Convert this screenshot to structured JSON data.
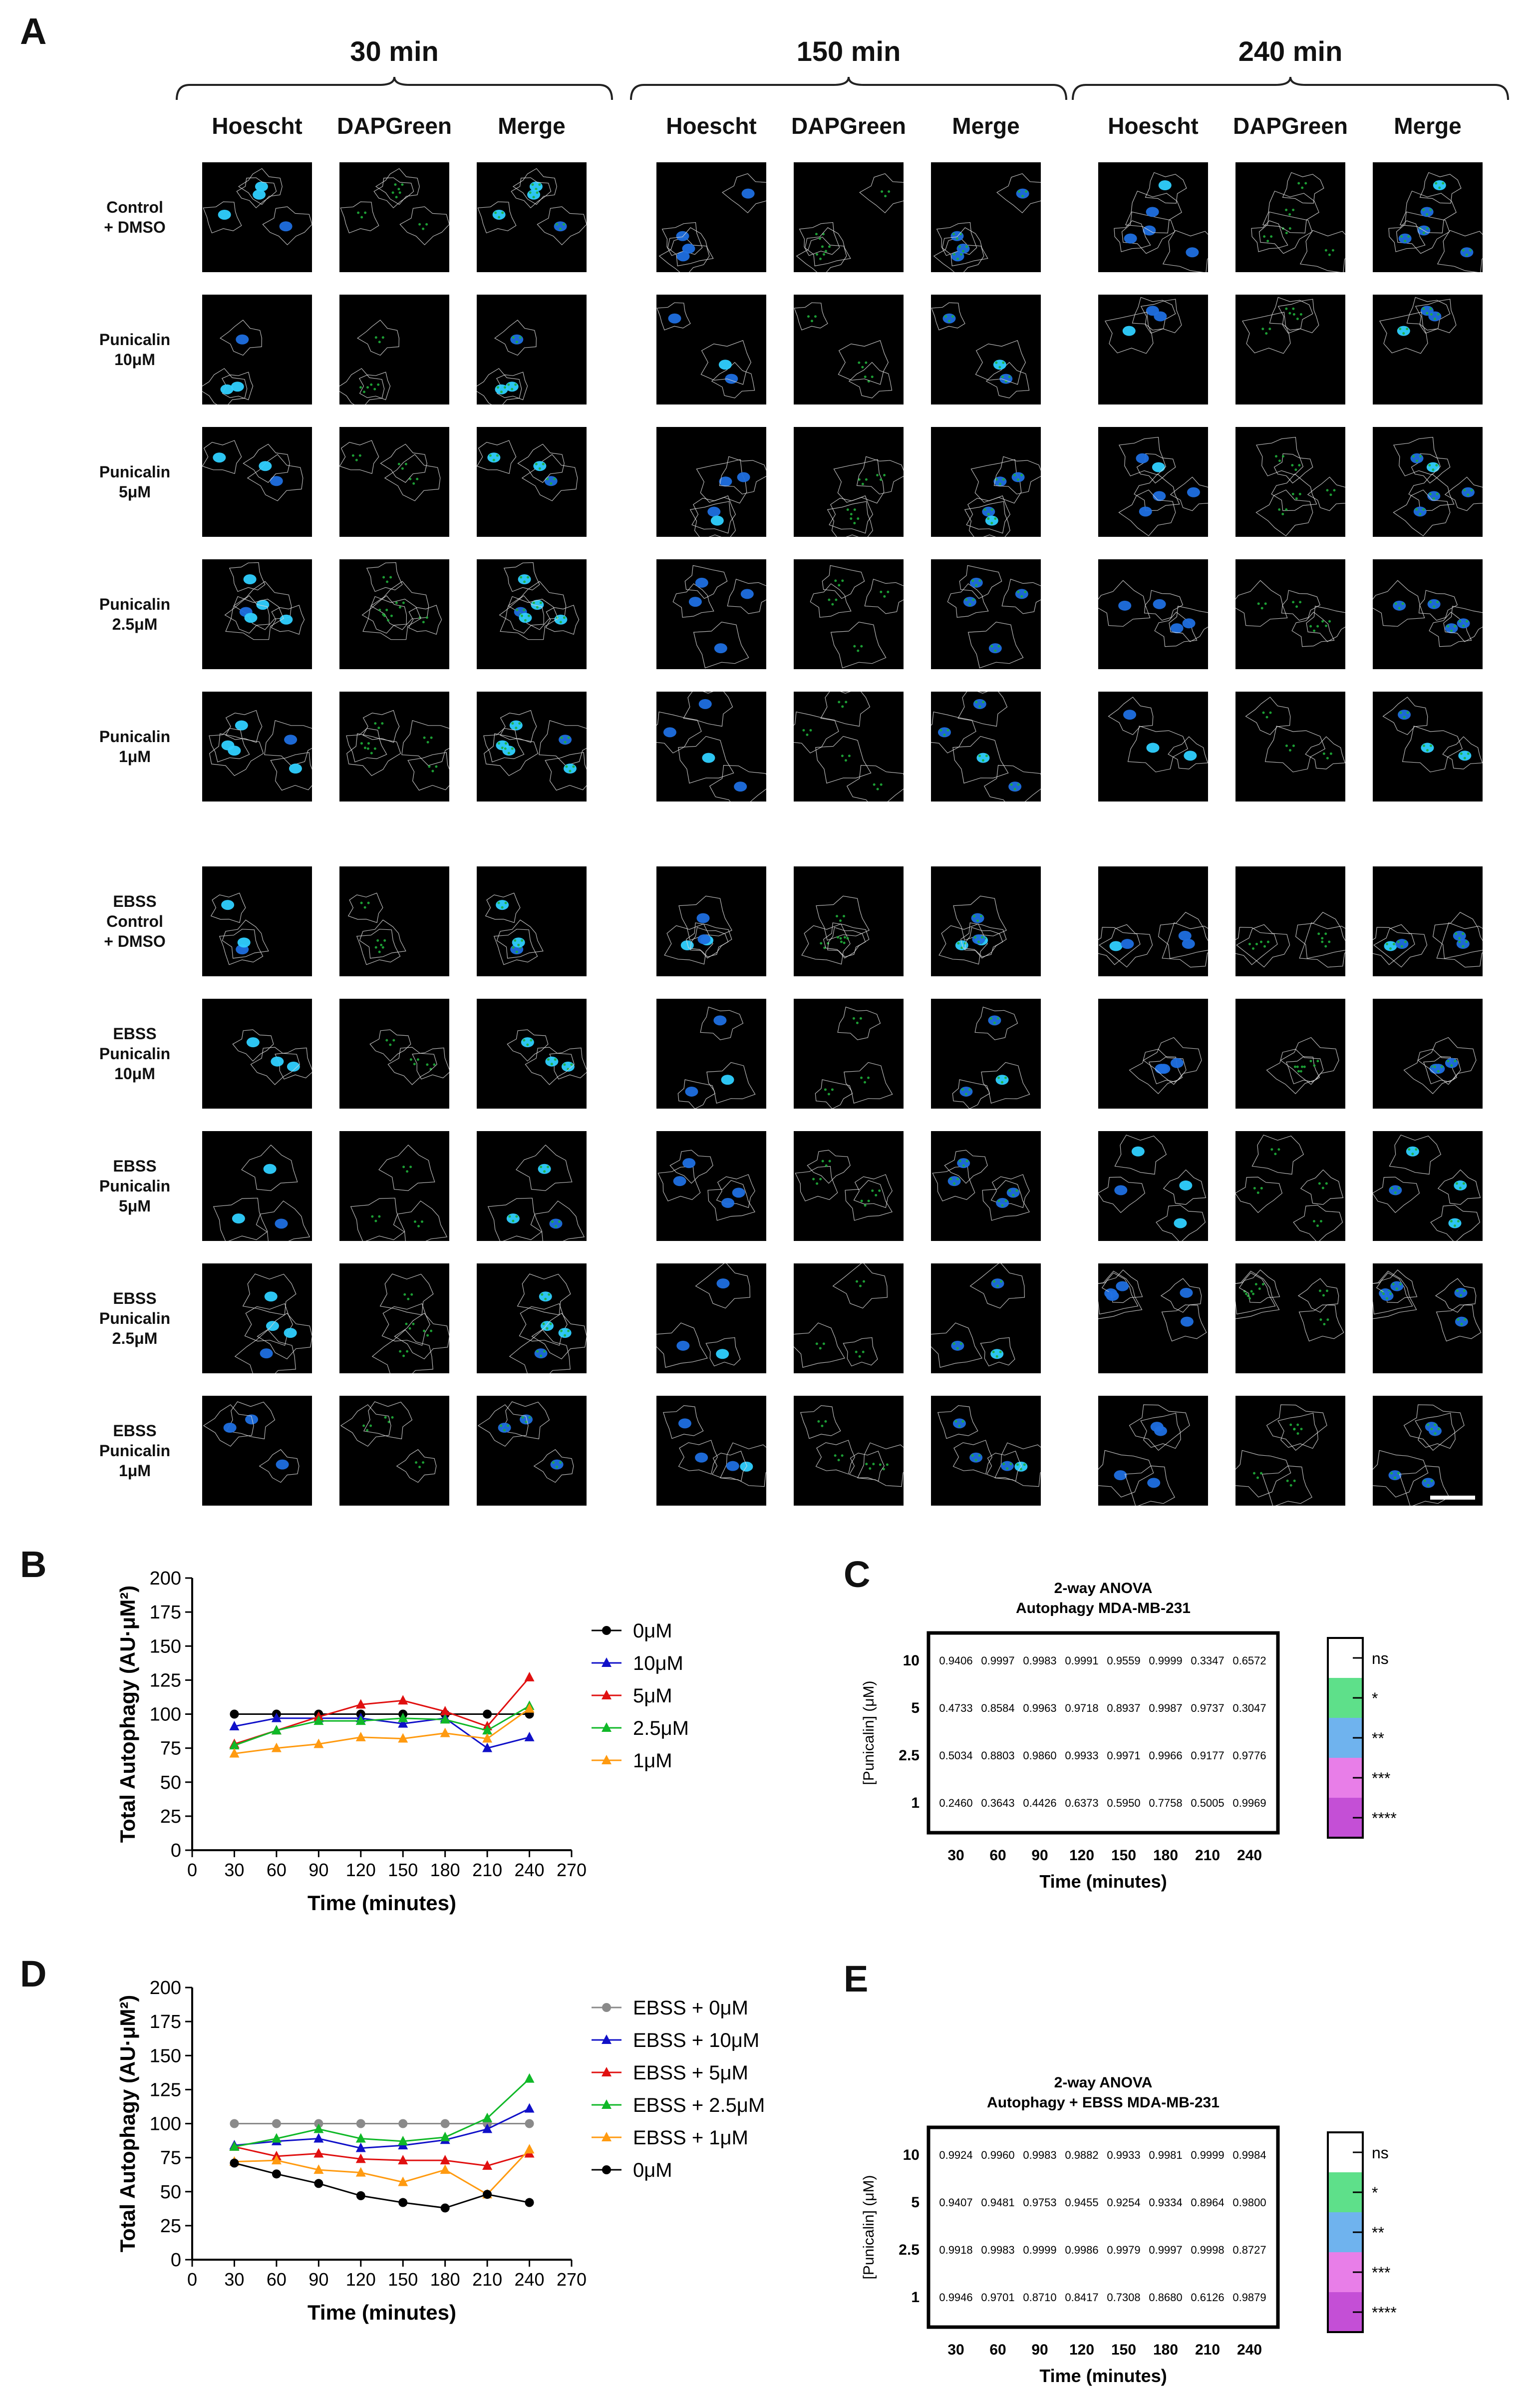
{
  "panel_labels": {
    "a": "A",
    "b": "B",
    "c": "C",
    "d": "D",
    "e": "E"
  },
  "panel_a": {
    "time_points": [
      "30 min",
      "150 min",
      "240 min"
    ],
    "channels": [
      "Hoescht",
      "DAPGreen",
      "Merge"
    ],
    "rows": [
      [
        "Control",
        "+ DMSO"
      ],
      [
        "Punicalin",
        "10μM"
      ],
      [
        "Punicalin",
        "5μM"
      ],
      [
        "Punicalin",
        "2.5μM"
      ],
      [
        "Punicalin",
        "1μM"
      ],
      [
        "EBSS",
        "Control",
        "+ DMSO"
      ],
      [
        "EBSS",
        "Punicalin",
        "10μM"
      ],
      [
        "EBSS",
        "Punicalin",
        "5μM"
      ],
      [
        "EBSS",
        "Punicalin",
        "2.5μM"
      ],
      [
        "EBSS",
        "Punicalin",
        "1μM"
      ]
    ],
    "colors": {
      "nucleus": "#1f6fe0",
      "nucleus_bright": "#2fd0ff",
      "puncta": "#1fae3a",
      "outline": "#d8d8d8"
    }
  },
  "chart_data": [
    {
      "panel": "B",
      "type": "line",
      "xlabel": "Time (minutes)",
      "ylabel": "Total Autophagy (AU·μM²)",
      "xlim": [
        0,
        270
      ],
      "ylim": [
        0,
        200
      ],
      "xticks": [
        0,
        30,
        60,
        90,
        120,
        150,
        180,
        210,
        240,
        270
      ],
      "yticks": [
        0,
        25,
        50,
        75,
        100,
        125,
        150,
        175,
        200
      ],
      "x": [
        30,
        60,
        90,
        120,
        150,
        180,
        210,
        240
      ],
      "legend_position": "right",
      "series": [
        {
          "name": "0μM",
          "color": "#000000",
          "marker": "circle",
          "values": [
            100,
            100,
            100,
            100,
            100,
            100,
            100,
            100
          ]
        },
        {
          "name": "10μM",
          "color": "#1010c8",
          "marker": "triangle",
          "values": [
            91,
            97,
            97,
            97,
            93,
            97,
            75,
            83
          ]
        },
        {
          "name": "5μM",
          "color": "#e01010",
          "marker": "triangle",
          "values": [
            78,
            88,
            98,
            107,
            110,
            102,
            91,
            127
          ]
        },
        {
          "name": "2.5μM",
          "color": "#10b828",
          "marker": "triangle",
          "values": [
            77,
            88,
            95,
            95,
            97,
            96,
            88,
            106
          ]
        },
        {
          "name": "1μM",
          "color": "#ff9a10",
          "marker": "triangle",
          "values": [
            71,
            75,
            78,
            83,
            82,
            86,
            82,
            104
          ]
        }
      ]
    },
    {
      "panel": "D",
      "type": "line",
      "xlabel": "Time (minutes)",
      "ylabel": "Total Autophagy (AU·μM²)",
      "xlim": [
        0,
        270
      ],
      "ylim": [
        0,
        200
      ],
      "xticks": [
        0,
        30,
        60,
        90,
        120,
        150,
        180,
        210,
        240,
        270
      ],
      "yticks": [
        0,
        25,
        50,
        75,
        100,
        125,
        150,
        175,
        200
      ],
      "x": [
        30,
        60,
        90,
        120,
        150,
        180,
        210,
        240
      ],
      "legend_position": "right",
      "series": [
        {
          "name": "EBSS  + 0μM",
          "color": "#8a8a8a",
          "marker": "circle",
          "values": [
            100,
            100,
            100,
            100,
            100,
            100,
            100,
            100
          ]
        },
        {
          "name": "EBSS  + 10μM",
          "color": "#1010c8",
          "marker": "triangle",
          "values": [
            84,
            87,
            89,
            82,
            84,
            88,
            96,
            111
          ]
        },
        {
          "name": "EBSS  + 5μM",
          "color": "#e01010",
          "marker": "triangle",
          "values": [
            83,
            76,
            78,
            74,
            73,
            73,
            69,
            78
          ]
        },
        {
          "name": "EBSS  + 2.5μM",
          "color": "#10b828",
          "marker": "triangle",
          "values": [
            83,
            89,
            96,
            89,
            87,
            90,
            104,
            133
          ]
        },
        {
          "name": "EBSS  + 1μM",
          "color": "#ff9a10",
          "marker": "triangle",
          "values": [
            72,
            73,
            66,
            64,
            57,
            66,
            48,
            81
          ]
        },
        {
          "name": "0μM",
          "color": "#000000",
          "marker": "circle",
          "values": [
            71,
            63,
            56,
            47,
            42,
            38,
            48,
            42
          ]
        }
      ]
    },
    {
      "panel": "C",
      "type": "heatmap",
      "title": "2-way ANOVA",
      "subtitle": "Autophagy MDA-MB-231",
      "xlabel": "Time (minutes)",
      "ylabel": "[Punicalin] (μM)",
      "columns": [
        "30",
        "60",
        "90",
        "120",
        "150",
        "180",
        "210",
        "240"
      ],
      "rows": [
        "10",
        "5",
        "2.5",
        "1"
      ],
      "values": [
        [
          "0.9406",
          "0.9997",
          "0.9983",
          "0.9991",
          "0.9559",
          "0.9999",
          "0.3347",
          "0.6572"
        ],
        [
          "0.4733",
          "0.8584",
          "0.9963",
          "0.9718",
          "0.8937",
          "0.9987",
          "0.9737",
          "0.3047"
        ],
        [
          "0.5034",
          "0.8803",
          "0.9860",
          "0.9933",
          "0.9971",
          "0.9966",
          "0.9177",
          "0.9776"
        ],
        [
          "0.2460",
          "0.3643",
          "0.4426",
          "0.6373",
          "0.5950",
          "0.7758",
          "0.5005",
          "0.9969"
        ]
      ],
      "legend": [
        {
          "label": "ns",
          "color": "#ffffff"
        },
        {
          "label": "*",
          "color": "#5ee08a"
        },
        {
          "label": "**",
          "color": "#6fb3ee"
        },
        {
          "label": "***",
          "color": "#e87ee8"
        },
        {
          "label": "****",
          "color": "#c44fd6"
        }
      ]
    },
    {
      "panel": "E",
      "type": "heatmap",
      "title": "2-way ANOVA",
      "subtitle": "Autophagy + EBSS  MDA-MB-231",
      "xlabel": "Time (minutes)",
      "ylabel": "[Punicalin] (μM)",
      "columns": [
        "30",
        "60",
        "90",
        "120",
        "150",
        "180",
        "210",
        "240"
      ],
      "rows": [
        "10",
        "5",
        "2.5",
        "1"
      ],
      "values": [
        [
          "0.9924",
          "0.9960",
          "0.9983",
          "0.9882",
          "0.9933",
          "0.9981",
          "0.9999",
          "0.9984"
        ],
        [
          "0.9407",
          "0.9481",
          "0.9753",
          "0.9455",
          "0.9254",
          "0.9334",
          "0.8964",
          "0.9800"
        ],
        [
          "0.9918",
          "0.9983",
          "0.9999",
          "0.9986",
          "0.9979",
          "0.9997",
          "0.9998",
          "0.8727"
        ],
        [
          "0.9946",
          "0.9701",
          "0.8710",
          "0.8417",
          "0.7308",
          "0.8680",
          "0.6126",
          "0.9879"
        ]
      ],
      "legend": [
        {
          "label": "ns",
          "color": "#ffffff"
        },
        {
          "label": "*",
          "color": "#5ee08a"
        },
        {
          "label": "**",
          "color": "#6fb3ee"
        },
        {
          "label": "***",
          "color": "#e87ee8"
        },
        {
          "label": "****",
          "color": "#c44fd6"
        }
      ]
    }
  ]
}
